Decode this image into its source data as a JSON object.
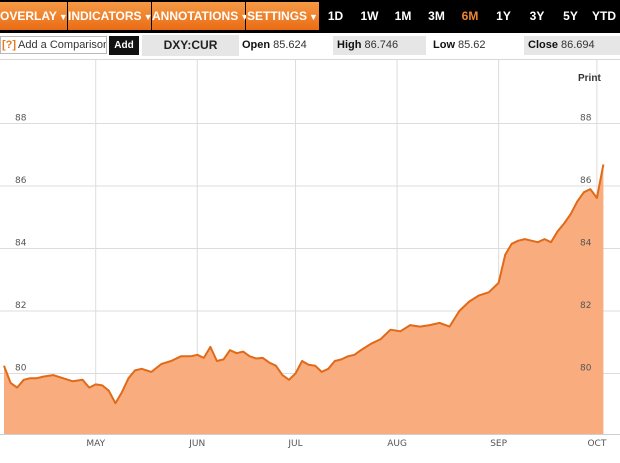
{
  "toolbar": {
    "menus": [
      {
        "label": "OVERLAY",
        "name": "overlay-menu"
      },
      {
        "label": "INDICATORS",
        "name": "indicators-menu"
      },
      {
        "label": "ANNOTATIONS",
        "name": "annotations-menu"
      },
      {
        "label": "SETTINGS",
        "name": "settings-menu"
      }
    ],
    "menu_arrow": "▼",
    "ranges": [
      "1D",
      "1W",
      "1M",
      "3M",
      "6M",
      "1Y",
      "3Y",
      "5Y",
      "YTD"
    ],
    "active_range": "6M"
  },
  "infobar": {
    "help_label": "[?]",
    "compare_placeholder": "Add a Comparison",
    "add_label": "Add",
    "symbol": "DXY:CUR",
    "open_label": "Open",
    "open_value": "85.624",
    "high_label": "High",
    "high_value": "86.746",
    "low_label": "Low",
    "low_value": "85.62",
    "close_label": "Close",
    "close_value": "86.694"
  },
  "print_label": "Print",
  "colors": {
    "accent": "#f0862e",
    "line": "#e06a18",
    "fill": "#f9ad7f",
    "grid": "#dcdcdc"
  },
  "chart_data": {
    "type": "area",
    "ylim": [
      78.0,
      89.6
    ],
    "y_ticks": [
      80,
      82,
      84,
      86,
      88
    ],
    "y_tick_labels": [
      "80",
      "82",
      "84",
      "86",
      "88"
    ],
    "x_ticks": [
      {
        "label": "MAY",
        "x": "2014-05-01"
      },
      {
        "label": "JUN",
        "x": "2014-06-01"
      },
      {
        "label": "JUL",
        "x": "2014-07-01"
      },
      {
        "label": "AUG",
        "x": "2014-08-01"
      },
      {
        "label": "SEP",
        "x": "2014-09-01"
      },
      {
        "label": "OCT",
        "x": "2014-10-01"
      }
    ],
    "x_range": [
      "2014-04-03",
      "2014-10-05"
    ],
    "grid": true,
    "series": [
      {
        "x": [
          "2014-04-03",
          "2014-04-05",
          "2014-04-07",
          "2014-04-09",
          "2014-04-11",
          "2014-04-13",
          "2014-04-15",
          "2014-04-18",
          "2014-04-21",
          "2014-04-24",
          "2014-04-27",
          "2014-04-29",
          "2014-05-01",
          "2014-05-03",
          "2014-05-05",
          "2014-05-07",
          "2014-05-09",
          "2014-05-11",
          "2014-05-13",
          "2014-05-15",
          "2014-05-18",
          "2014-05-21",
          "2014-05-24",
          "2014-05-27",
          "2014-05-30",
          "2014-06-01",
          "2014-06-03",
          "2014-06-05",
          "2014-06-07",
          "2014-06-09",
          "2014-06-11",
          "2014-06-13",
          "2014-06-15",
          "2014-06-17",
          "2014-06-19",
          "2014-06-21",
          "2014-06-23",
          "2014-06-25",
          "2014-06-27",
          "2014-06-29",
          "2014-07-01",
          "2014-07-03",
          "2014-07-05",
          "2014-07-07",
          "2014-07-09",
          "2014-07-11",
          "2014-07-13",
          "2014-07-15",
          "2014-07-17",
          "2014-07-19",
          "2014-07-21",
          "2014-07-24",
          "2014-07-27",
          "2014-07-30",
          "2014-08-02",
          "2014-08-05",
          "2014-08-08",
          "2014-08-11",
          "2014-08-14",
          "2014-08-17",
          "2014-08-20",
          "2014-08-23",
          "2014-08-26",
          "2014-08-29",
          "2014-09-01",
          "2014-09-03",
          "2014-09-05",
          "2014-09-07",
          "2014-09-09",
          "2014-09-11",
          "2014-09-13",
          "2014-09-15",
          "2014-09-17",
          "2014-09-19",
          "2014-09-21",
          "2014-09-23",
          "2014-09-25",
          "2014-09-27",
          "2014-09-29",
          "2014-10-01",
          "2014-10-03"
        ],
        "y": [
          80.25,
          79.7,
          79.55,
          79.8,
          79.85,
          79.85,
          79.9,
          79.95,
          79.85,
          79.75,
          79.8,
          79.55,
          79.65,
          79.62,
          79.45,
          79.05,
          79.4,
          79.85,
          80.1,
          80.15,
          80.05,
          80.3,
          80.4,
          80.55,
          80.55,
          80.6,
          80.5,
          80.85,
          80.4,
          80.45,
          80.75,
          80.65,
          80.7,
          80.55,
          80.48,
          80.5,
          80.35,
          80.25,
          79.95,
          79.8,
          80.0,
          80.4,
          80.28,
          80.25,
          80.05,
          80.15,
          80.4,
          80.45,
          80.55,
          80.6,
          80.75,
          80.95,
          81.1,
          81.4,
          81.35,
          81.55,
          81.5,
          81.55,
          81.62,
          81.5,
          82.0,
          82.3,
          82.5,
          82.6,
          82.9,
          83.8,
          84.15,
          84.25,
          84.3,
          84.25,
          84.2,
          84.3,
          84.2,
          84.55,
          84.8,
          85.1,
          85.5,
          85.8,
          85.9,
          85.62,
          86.69
        ]
      }
    ]
  }
}
